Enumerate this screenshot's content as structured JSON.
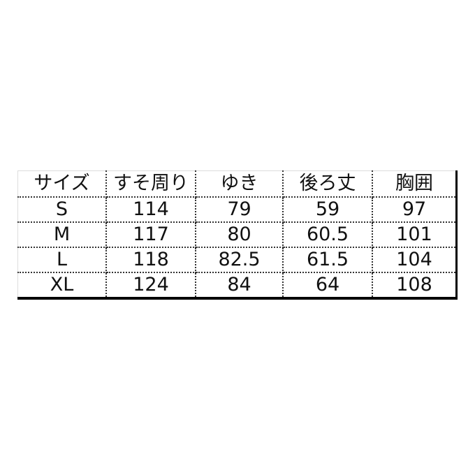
{
  "table": {
    "headers": [
      "サイズ",
      "すそ周り",
      "ゆき",
      "後ろ丈",
      "胸囲"
    ],
    "rows": [
      [
        "S",
        "114",
        "79",
        "59",
        "97"
      ],
      [
        "M",
        "117",
        "80",
        "60.5",
        "101"
      ],
      [
        "L",
        "118",
        "82.5",
        "61.5",
        "104"
      ],
      [
        "XL",
        "124",
        "84",
        "64",
        "108"
      ]
    ]
  }
}
